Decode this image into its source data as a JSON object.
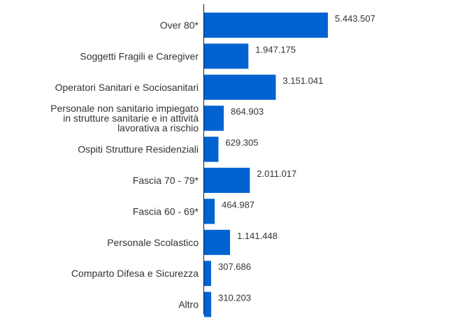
{
  "chart_data": {
    "type": "bar",
    "orientation": "horizontal",
    "title": "",
    "xlabel": "",
    "ylabel": "",
    "grid": false,
    "legend": "none",
    "bar_color": "#0063d1",
    "xlim": [
      0,
      5443507
    ],
    "categories": [
      [
        "Over 80*"
      ],
      [
        "Soggetti Fragili e Caregiver"
      ],
      [
        "Operatori Sanitari e Sociosanitari"
      ],
      [
        "Personale non sanitario impiegato",
        "in strutture sanitarie e in attività",
        "lavorativa a rischio"
      ],
      [
        "Ospiti Strutture Residenziali"
      ],
      [
        "Fascia 70 - 79*"
      ],
      [
        "Fascia 60 - 69*"
      ],
      [
        "Personale Scolastico"
      ],
      [
        "Comparto Difesa e Sicurezza"
      ],
      [
        "Altro"
      ]
    ],
    "values": [
      5443507,
      1947175,
      3151041,
      864903,
      629305,
      2011017,
      464987,
      1141448,
      307686,
      310203
    ],
    "value_labels": [
      "5.443.507",
      "1.947.175",
      "3.151.041",
      "864.903",
      "629.305",
      "2.011.017",
      "464.987",
      "1.141.448",
      "307.686",
      "310.203"
    ]
  }
}
